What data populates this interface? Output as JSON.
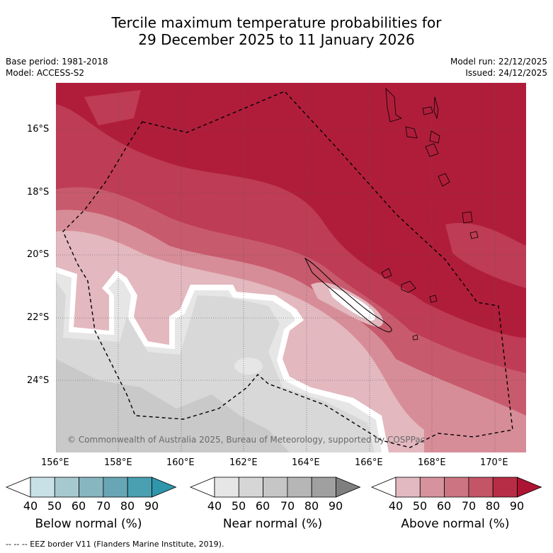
{
  "title_line1": "Tercile maximum temperature probabilities for",
  "title_line2": "29 December 2025 to 11 January 2026",
  "base_period": "Base period: 1981-2018",
  "model": "Model: ACCESS-S2",
  "model_run": "Model run: 22/12/2025",
  "issued": "Issued: 24/12/2025",
  "copyright": "© Commonwealth of Australia 2025, Bureau of Meteorology, supported by COSPPac",
  "lon_ticks": [
    "156°E",
    "158°E",
    "160°E",
    "162°E",
    "164°E",
    "166°E",
    "168°E",
    "170°E"
  ],
  "lat_ticks": [
    "16°S",
    "18°S",
    "20°S",
    "22°S",
    "24°S"
  ],
  "colorbars": [
    {
      "label": "Below normal (%)",
      "ticks": [
        "40",
        "50",
        "60",
        "70",
        "80",
        "90"
      ],
      "colors": [
        "#ffffff",
        "#c8e1e6",
        "#a6c9cf",
        "#87b5c0",
        "#68a6b5",
        "#4a9fb0",
        "#2f96ab"
      ]
    },
    {
      "label": "Near normal (%)",
      "ticks": [
        "40",
        "50",
        "60",
        "70",
        "80",
        "90"
      ],
      "colors": [
        "#ffffff",
        "#e6e6e6",
        "#d6d6d6",
        "#c6c6c6",
        "#b6b6b6",
        "#a0a0a0",
        "#7f7f7f"
      ]
    },
    {
      "label": "Above normal (%)",
      "ticks": [
        "40",
        "50",
        "60",
        "70",
        "80",
        "90"
      ],
      "colors": [
        "#ffffff",
        "#e2b9c0",
        "#d6939d",
        "#cc7481",
        "#c45566",
        "#b82d46",
        "#ad1333"
      ]
    }
  ],
  "footer": "-- -- -- EEZ border V11 (Flanders Marine Institute, 2019).",
  "colors": {
    "above90": "#b01d3b",
    "above80": "#be3c55",
    "above70": "#c85a6d",
    "above60": "#d78d98",
    "above50": "#e3b8bf",
    "near60": "#c9c9c9",
    "near50": "#d8d8d8",
    "near40": "#e6e6e6"
  }
}
